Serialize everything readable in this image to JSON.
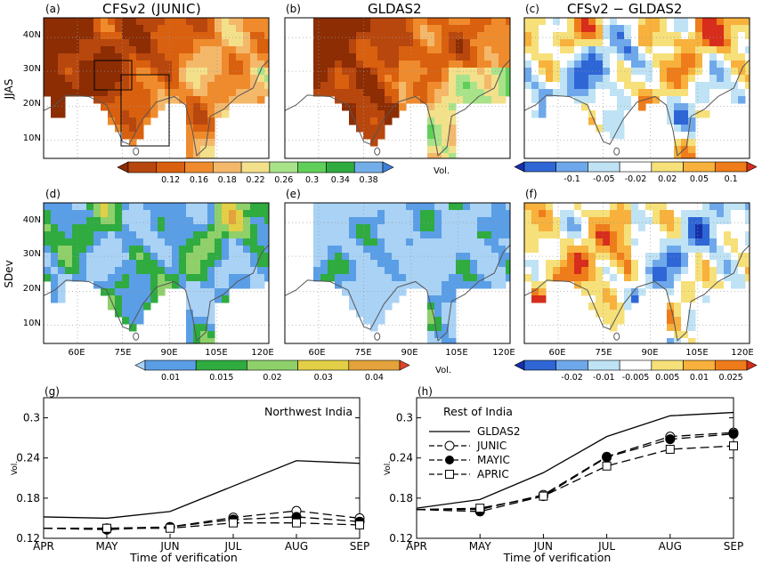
{
  "panel_labels": {
    "a": "(a)",
    "b": "(b)",
    "c": "(c)",
    "d": "(d)",
    "e": "(e)",
    "f": "(f)",
    "g": "(g)",
    "h": "(h)"
  },
  "titles": {
    "a": "CFSv2 (JUNIC)",
    "b": "GLDAS2",
    "c": "CFSv2 − GLDAS2"
  },
  "row_labels": {
    "top": "JJAS",
    "mid": "SDev"
  },
  "map_axes": {
    "lat_ticks": [
      "40N",
      "30N",
      "20N",
      "10N"
    ],
    "lon_ticks": [
      "60E",
      "75E",
      "90E",
      "105E",
      "120E"
    ]
  },
  "colorbars": {
    "mean": {
      "labels": [
        "0.12",
        "0.16",
        "0.18",
        "0.22",
        "0.26",
        "0.3",
        "0.34",
        "0.38"
      ],
      "unit": "Vol.",
      "colors": [
        "#8c2d04",
        "#b8470e",
        "#d9600f",
        "#ef8b2c",
        "#f4b86b",
        "#f3e08a",
        "#a8e38a",
        "#5fcf5a",
        "#2fab40",
        "#74aee9",
        "#3f7fd8"
      ]
    },
    "mean_diff": {
      "labels": [
        "-0.1",
        "-0.05",
        "-0.02",
        "0.02",
        "0.05",
        "0.1"
      ],
      "colors": [
        "#1530a8",
        "#2f66d6",
        "#6fa8ea",
        "#bfe3f5",
        "#ffffff",
        "#f6e07a",
        "#f7b13c",
        "#ef7c1a",
        "#d62d1c"
      ]
    },
    "sdev": {
      "labels": [
        "0.01",
        "0.015",
        "0.02",
        "0.03",
        "0.04"
      ],
      "unit": "Vol.",
      "colors": [
        "#a9d2f5",
        "#5a9ee6",
        "#2fab40",
        "#8fd06a",
        "#e2cf45",
        "#e3a23b",
        "#e0452a"
      ]
    },
    "sdev_diff": {
      "labels": [
        "-0.02",
        "-0.01",
        "-0.005",
        "0.005",
        "0.01",
        "0.025"
      ],
      "colors": [
        "#1530a8",
        "#2f66d6",
        "#6fa8ea",
        "#bfe3f5",
        "#ffffff",
        "#f6e07a",
        "#f7b13c",
        "#ef7c1a",
        "#d62d1c"
      ]
    }
  },
  "chart_data": [
    {
      "type": "line",
      "panel": "(g)",
      "title": "Northwest India",
      "categories": [
        "APR",
        "MAY",
        "JUN",
        "JUL",
        "AUG",
        "SEP"
      ],
      "xlabel": "Time of verification",
      "ylabel": "Vol.",
      "ylim": [
        0.12,
        0.33
      ],
      "yticks": [
        "0.12",
        "0.18",
        "0.24",
        "0.3"
      ],
      "series": [
        {
          "name": "GLDAS2",
          "values": [
            0.152,
            0.15,
            0.16,
            0.198,
            0.236,
            0.232
          ]
        },
        {
          "name": "JUNIC",
          "values": [
            0.135,
            0.135,
            0.137,
            0.151,
            0.161,
            0.15
          ]
        },
        {
          "name": "MAYIC",
          "values": [
            0.135,
            0.133,
            0.137,
            0.148,
            0.152,
            0.145
          ]
        },
        {
          "name": "APRIC",
          "values": [
            0.135,
            0.135,
            0.135,
            0.143,
            0.143,
            0.14
          ]
        }
      ]
    },
    {
      "type": "line",
      "panel": "(h)",
      "title": "Rest of India",
      "categories": [
        "APR",
        "MAY",
        "JUN",
        "JUL",
        "AUG",
        "SEP"
      ],
      "xlabel": "Time of verification",
      "ylabel": "Vol.",
      "ylim": [
        0.12,
        0.33
      ],
      "yticks": [
        "0.12",
        "0.18",
        "0.24",
        "0.3"
      ],
      "series": [
        {
          "name": "GLDAS2",
          "values": [
            0.165,
            0.178,
            0.218,
            0.272,
            0.303,
            0.308
          ]
        },
        {
          "name": "JUNIC",
          "values": [
            0.163,
            0.163,
            0.185,
            0.242,
            0.272,
            0.278
          ]
        },
        {
          "name": "MAYIC",
          "values": [
            0.163,
            0.16,
            0.183,
            0.241,
            0.268,
            0.276
          ]
        },
        {
          "name": "APRIC",
          "values": [
            0.163,
            0.165,
            0.183,
            0.228,
            0.253,
            0.258
          ]
        }
      ]
    }
  ]
}
